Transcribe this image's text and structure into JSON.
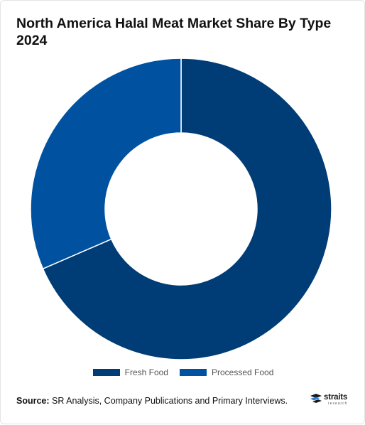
{
  "header": {
    "title": "North America Halal Meat Market Share By Type 2024"
  },
  "footer": {
    "source_label": "Source:",
    "source_text": "SR Analysis, Company Publications and Primary Interviews.",
    "logo_word": "straits",
    "logo_sub": "research"
  },
  "colors": {
    "fresh_food": "#003c75",
    "processed_food": "#0052a0"
  },
  "chart_data": {
    "type": "pie",
    "subtype": "donut",
    "title": "North America Halal Meat Market Share By Type 2024",
    "categories": [
      "Fresh Food",
      "Processed Food"
    ],
    "values": [
      68.5,
      31.5
    ],
    "unit": "%",
    "legend": "bottom",
    "series": [
      {
        "name": "Fresh Food",
        "value": 68.5,
        "color": "#003c75"
      },
      {
        "name": "Processed Food",
        "value": 31.5,
        "color": "#0052a0"
      }
    ]
  }
}
